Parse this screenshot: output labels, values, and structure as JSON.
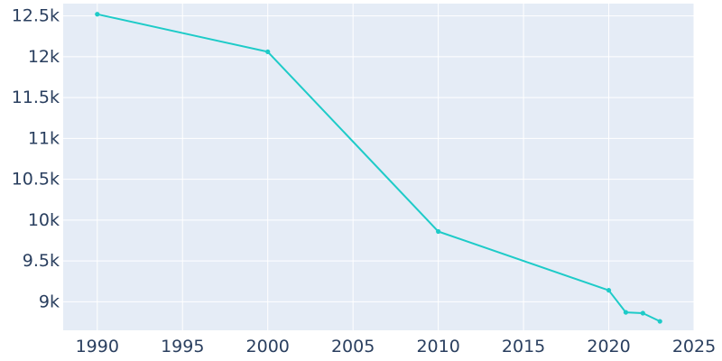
{
  "colors": {
    "plot_bg": "#e5ecf6",
    "grid": "#ffffff",
    "line": "#1ecbc8",
    "text": "#2a3f5f"
  },
  "chart_data": {
    "type": "line",
    "title": "",
    "xlabel": "",
    "ylabel": "",
    "grid": true,
    "xlim": [
      1988,
      2025
    ],
    "ylim": [
      8650,
      12650
    ],
    "xticks": [
      1990,
      1995,
      2000,
      2005,
      2010,
      2015,
      2020,
      2025
    ],
    "xtick_labels": [
      "1990",
      "1995",
      "2000",
      "2005",
      "2010",
      "2015",
      "2020",
      "2025"
    ],
    "yticks": [
      9000,
      9500,
      10000,
      10500,
      11000,
      11500,
      12000,
      12500
    ],
    "ytick_labels": [
      "9k",
      "9.5k",
      "10k",
      "10.5k",
      "11k",
      "11.5k",
      "12k",
      "12.5k"
    ],
    "series": [
      {
        "x": [
          1990,
          2000,
          2010,
          2020,
          2021,
          2022,
          2023
        ],
        "y": [
          12520,
          12060,
          9860,
          9140,
          8870,
          8860,
          8760
        ]
      }
    ]
  }
}
